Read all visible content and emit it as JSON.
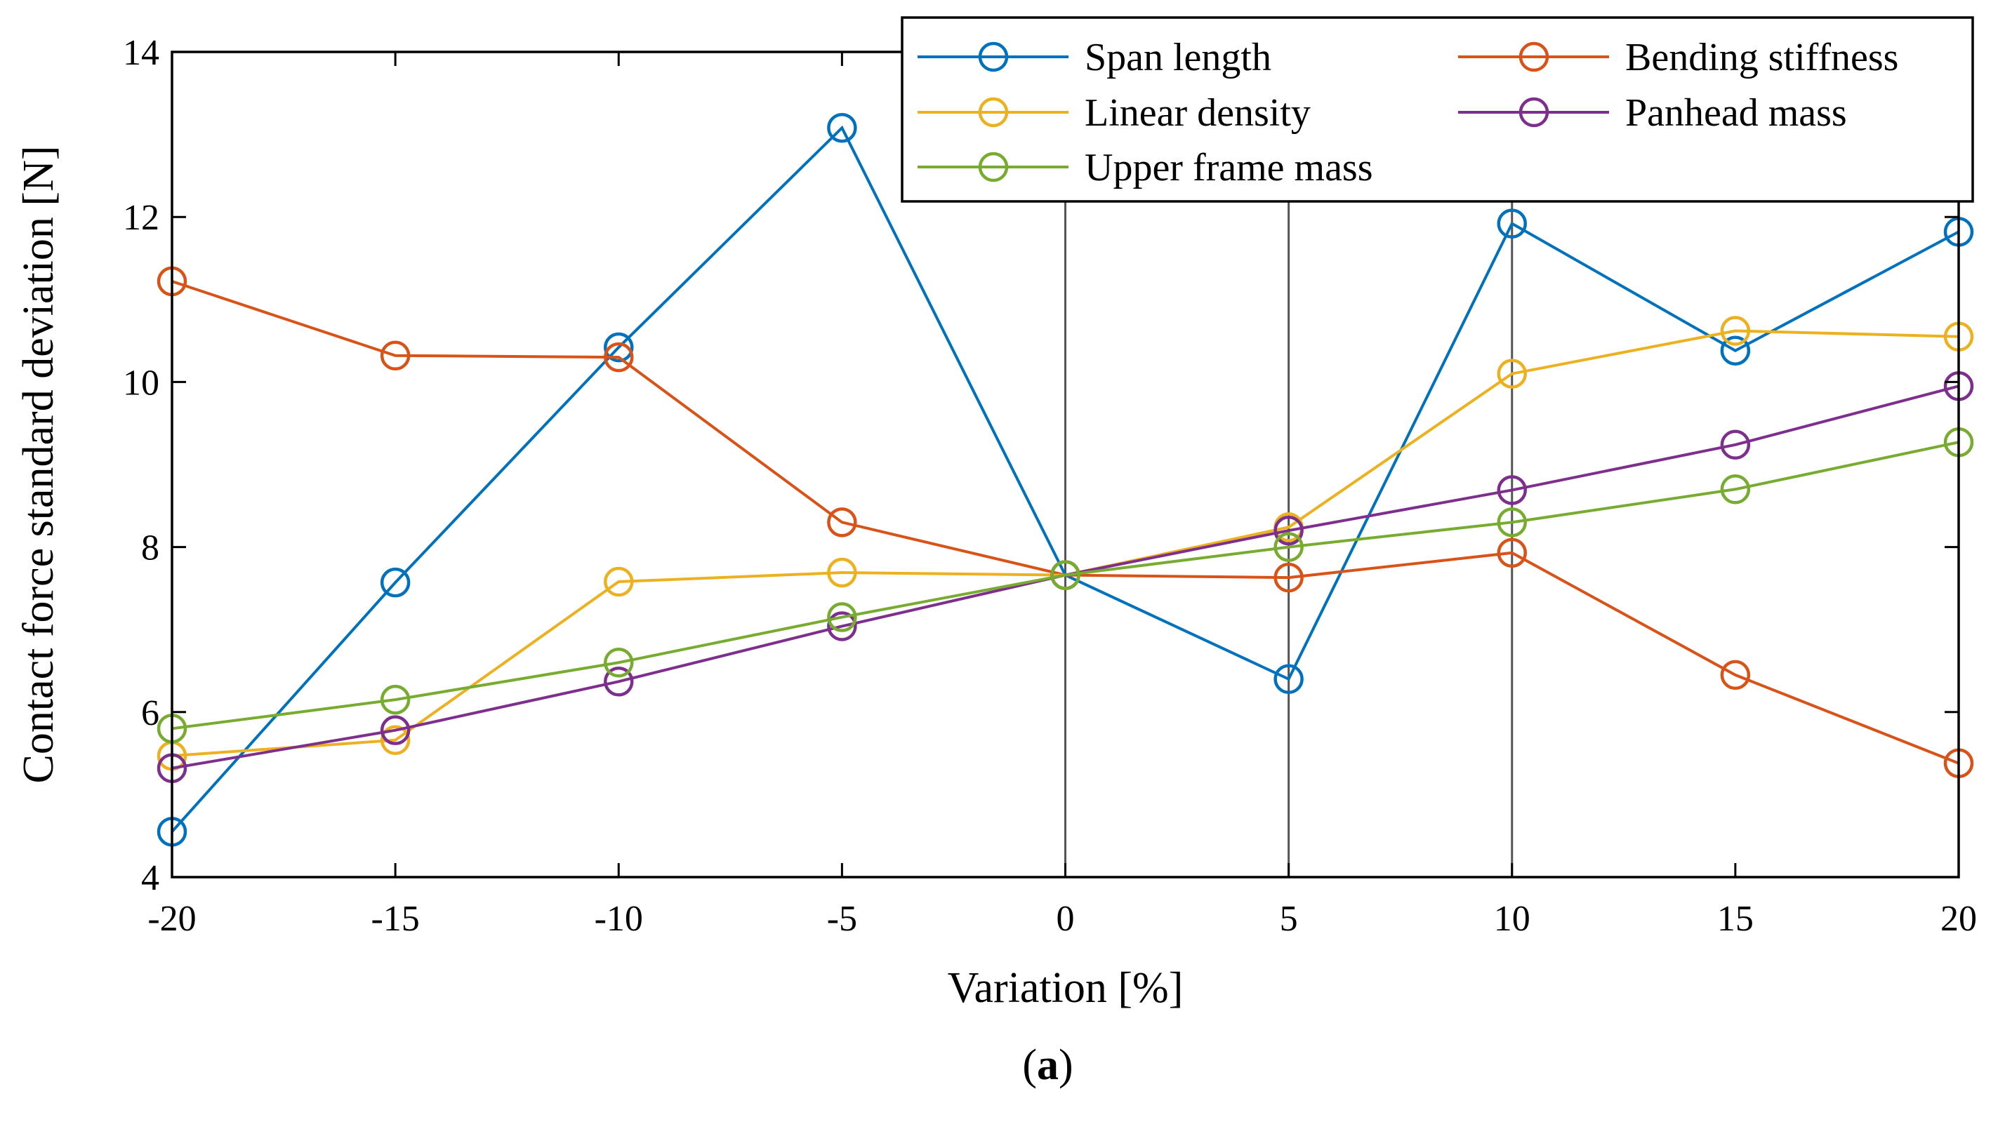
{
  "chart_data": {
    "type": "line",
    "title": "",
    "xlabel": "Variation [%]",
    "ylabel": "Contact force standard deviation [N]",
    "caption_open": "(",
    "caption_letter": "a",
    "caption_close": ")",
    "x": [
      -20,
      -15,
      -10,
      -5,
      0,
      5,
      10,
      15,
      20
    ],
    "xlim": [
      -20,
      20
    ],
    "ylim": [
      4,
      14
    ],
    "xticks": [
      -20,
      -15,
      -10,
      -5,
      0,
      5,
      10,
      15,
      20
    ],
    "xtick_labels": [
      "-20",
      "-15",
      "-10",
      "-5",
      "0",
      "5",
      "10",
      "15",
      "20"
    ],
    "yticks": [
      4,
      6,
      8,
      10,
      12,
      14
    ],
    "ytick_labels": [
      "4",
      "6",
      "8",
      "10",
      "12",
      "14"
    ],
    "reference_lines_x": [
      0,
      5,
      10
    ],
    "legend_location": "top-right",
    "series": [
      {
        "name": "Span length",
        "color": "#0072BD",
        "values": [
          4.55,
          7.57,
          10.42,
          13.08,
          7.66,
          6.4,
          11.92,
          10.38,
          11.82
        ]
      },
      {
        "name": "Bending stiffness",
        "color": "#D95319",
        "values": [
          11.22,
          10.32,
          10.3,
          8.3,
          7.66,
          7.63,
          7.93,
          6.45,
          5.38
        ]
      },
      {
        "name": "Linear density",
        "color": "#EDB120",
        "values": [
          5.47,
          5.66,
          7.58,
          7.69,
          7.66,
          8.24,
          10.1,
          10.62,
          10.55
        ]
      },
      {
        "name": "Panhead mass",
        "color": "#7E2F8E",
        "values": [
          5.32,
          5.78,
          6.37,
          7.04,
          7.66,
          8.2,
          8.69,
          9.24,
          9.95
        ]
      },
      {
        "name": "Upper frame mass",
        "color": "#77AC30",
        "values": [
          5.8,
          6.15,
          6.6,
          7.15,
          7.66,
          8.0,
          8.3,
          8.7,
          9.27
        ]
      }
    ]
  }
}
